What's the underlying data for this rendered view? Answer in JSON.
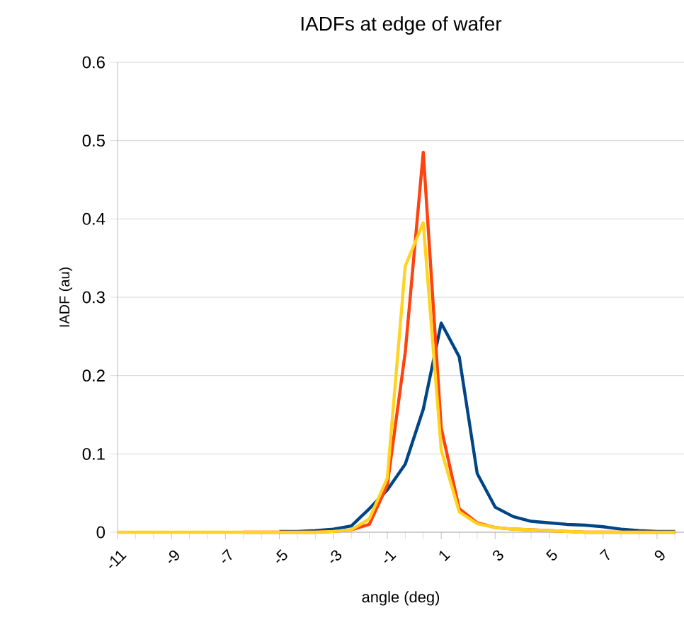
{
  "chart_data": {
    "type": "line",
    "title": "IADFs at edge of wafer",
    "xlabel": "angle (deg)",
    "ylabel": "IADF (au)",
    "categories": [
      "-11",
      null,
      null,
      "-9",
      null,
      null,
      "-7",
      null,
      null,
      "-5",
      null,
      null,
      "-3",
      null,
      null,
      "-1",
      null,
      null,
      "1",
      null,
      null,
      "3",
      null,
      null,
      "5",
      null,
      null,
      "7",
      null,
      null,
      "9",
      null
    ],
    "series": [
      {
        "color": "#004586",
        "values": [
          null,
          null,
          null,
          null,
          null,
          null,
          null,
          null,
          null,
          0.001,
          0.001,
          0.002,
          0.004,
          0.008,
          0.03,
          0.054,
          0.087,
          0.157,
          0.267,
          0.224,
          0.075,
          0.032,
          0.02,
          0.014,
          0.012,
          0.01,
          0.009,
          0.007,
          0.004,
          0.002,
          0.001,
          0.001
        ]
      },
      {
        "color": "#ff420e",
        "values": [
          null,
          null,
          null,
          null,
          null,
          null,
          null,
          0,
          0,
          0,
          0,
          0,
          0.001,
          0.003,
          0.01,
          0.06,
          0.23,
          0.485,
          0.133,
          0.03,
          0.012,
          0.006,
          0.004,
          0.003,
          0.002,
          0.001,
          0,
          0,
          0,
          0,
          0,
          0
        ]
      },
      {
        "color": "#ffd320",
        "values": [
          0,
          0,
          0,
          0,
          0,
          0,
          0,
          0,
          0,
          0,
          0,
          0,
          0.001,
          0.003,
          0.017,
          0.069,
          0.34,
          0.395,
          0.105,
          0.026,
          0.011,
          0.006,
          0.004,
          0.003,
          0.002,
          0.001,
          0,
          0,
          0,
          0,
          0,
          0
        ]
      }
    ],
    "ylim": [
      0,
      0.6
    ],
    "yticks": [
      0,
      0.1,
      0.2,
      0.3,
      0.4,
      0.5,
      0.6
    ],
    "grid": "y",
    "marker": "none",
    "line_style": "solid"
  }
}
